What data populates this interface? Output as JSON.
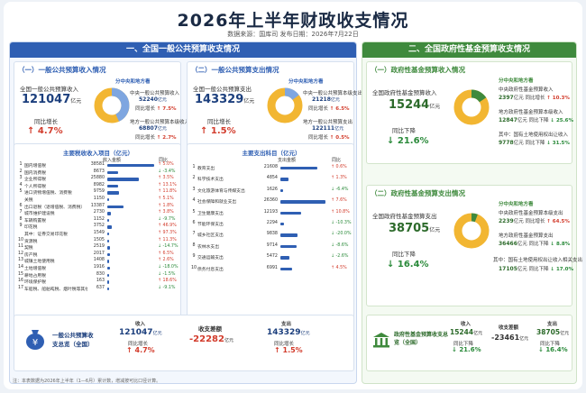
{
  "title": "2026年上半年财政收支情况",
  "source": "数据来源：国库司    发布日期：2026年7月22日",
  "footnote": "注：本表数据为2026年上半年（1—6月）累计数，增减按可比口径计算。",
  "general": {
    "header": "一、全国一般公共预算收支情况",
    "revenue": {
      "subtitle": "（一）一般公共预算收入情况",
      "label": "全国一般公共预算收入",
      "value": "121047",
      "unit": "亿元",
      "growth_label": "同比增长",
      "growth": "4.7%",
      "split_title": "分中央和地方看",
      "central_label": "中央一般公共预算收入",
      "central_value": "52240",
      "central_growth": "7.5%",
      "local_label": "地方一般公共预算本级收入",
      "local_value": "68807",
      "local_growth": "2.7%",
      "unit_small": "亿元",
      "yoy": "同比增长",
      "central_share": 0.432
    },
    "expenditure": {
      "subtitle": "（二）一般公共预算支出情况",
      "label": "全国一般公共预算支出",
      "value": "143329",
      "unit": "亿元",
      "growth_label": "同比增长",
      "growth": "1.5%",
      "split_title": "分中央和地方看",
      "central_label": "中央一般公共预算本级支出",
      "central_value": "21218",
      "central_growth": "6.5%",
      "local_label": "地方一般公共预算支出",
      "local_value": "122111",
      "local_growth": "0.5%",
      "unit_small": "亿元",
      "yoy": "同比增长",
      "central_share": 0.148
    },
    "tax_table": {
      "title": "主要税收收入项目（亿元）",
      "col_value": "收入金额",
      "col_growth": "同比",
      "rows": [
        {
          "n": "1",
          "name": "国内增值税",
          "value": 38581,
          "growth": "5.0%",
          "dir": "up"
        },
        {
          "n": "2",
          "name": "国内消费税",
          "value": 8673,
          "growth": "-3.4%",
          "dir": "down"
        },
        {
          "n": "3",
          "name": "企业所得税",
          "value": 25880,
          "growth": "3.5%",
          "dir": "up"
        },
        {
          "n": "4",
          "name": "个人所得税",
          "value": 8982,
          "growth": "13.1%",
          "dir": "up"
        },
        {
          "n": "5",
          "name": "进口货物增值税、消费税",
          "value": 9759,
          "growth": "11.8%",
          "dir": "up"
        },
        {
          "n": "",
          "name": "关税",
          "value": 1150,
          "growth": "5.1%",
          "dir": "up"
        },
        {
          "n": "6",
          "name": "出口退税（退增值税、消费税）",
          "value": 13387,
          "growth": "1.8%",
          "dir": "up"
        },
        {
          "n": "7",
          "name": "城市维护建设税",
          "value": 2730,
          "growth": "3.8%",
          "dir": "up"
        },
        {
          "n": "8",
          "name": "车辆购置税",
          "value": 1152,
          "growth": "-9.7%",
          "dir": "down"
        },
        {
          "n": "9",
          "name": "印花税",
          "value": 3752,
          "growth": "46.9%",
          "dir": "up"
        },
        {
          "n": "",
          "name": "其中：证券交易印花税",
          "value": 1549,
          "growth": "97.3%",
          "dir": "up"
        },
        {
          "n": "10",
          "name": "资源税",
          "value": 1505,
          "growth": "11.3%",
          "dir": "up"
        },
        {
          "n": "11",
          "name": "契税",
          "value": 2519,
          "growth": "-14.7%",
          "dir": "down"
        },
        {
          "n": "12",
          "name": "房产税",
          "value": 2017,
          "growth": "6.5%",
          "dir": "up"
        },
        {
          "n": "13",
          "name": "城镇土地使用税",
          "value": 1408,
          "growth": "2.6%",
          "dir": "up"
        },
        {
          "n": "14",
          "name": "土地增值税",
          "value": 1916,
          "growth": "-18.0%",
          "dir": "down"
        },
        {
          "n": "15",
          "name": "耕地占用税",
          "value": 830,
          "growth": "-1.5%",
          "dir": "down"
        },
        {
          "n": "16",
          "name": "环境保护税",
          "value": 163,
          "growth": "18.6%",
          "dir": "up"
        },
        {
          "n": "17",
          "name": "车船税、船舶吨税、烟叶税等其他各项税收收入合计",
          "value": 637,
          "growth": "-9.1%",
          "dir": "down"
        }
      ]
    },
    "spend_table": {
      "title": "主要支出科目（亿元）",
      "col_value": "支出金额",
      "col_growth": "同比",
      "rows": [
        {
          "n": "1",
          "name": "教育支出",
          "value": 21608,
          "growth": "0.6%",
          "dir": "up"
        },
        {
          "n": "2",
          "name": "科学技术支出",
          "value": 4854,
          "growth": "1.3%",
          "dir": "up"
        },
        {
          "n": "3",
          "name": "文化旅游体育与传媒支出",
          "value": 1626,
          "growth": "-6.4%",
          "dir": "down"
        },
        {
          "n": "4",
          "name": "社会保障和就业支出",
          "value": 26360,
          "growth": "7.6%",
          "dir": "up"
        },
        {
          "n": "5",
          "name": "卫生健康支出",
          "value": 12193,
          "growth": "10.8%",
          "dir": "up"
        },
        {
          "n": "6",
          "name": "节能环保支出",
          "value": 2294,
          "growth": "-10.3%",
          "dir": "down"
        },
        {
          "n": "7",
          "name": "城乡社区支出",
          "value": 9838,
          "growth": "-20.0%",
          "dir": "down"
        },
        {
          "n": "8",
          "name": "农林水支出",
          "value": 9714,
          "growth": "-8.6%",
          "dir": "down"
        },
        {
          "n": "9",
          "name": "交通运输支出",
          "value": 5472,
          "growth": "-2.6%",
          "dir": "down"
        },
        {
          "n": "10",
          "name": "债务付息支出",
          "value": 6991,
          "growth": "4.5%",
          "dir": "up"
        }
      ]
    },
    "summary": {
      "label": "一般公共预算收支总览（全国）",
      "income_label": "收入",
      "income_value": "121047",
      "income_growth": "4.7%",
      "diff_label": "收支差额",
      "diff_value": "-22282",
      "spend_label": "支出",
      "spend_value": "143329",
      "spend_growth": "1.5%",
      "unit": "亿元",
      "yoy": "同比增长"
    }
  },
  "fund": {
    "header": "二、全国政府性基金预算收支情况",
    "revenue": {
      "subtitle": "（一）政府性基金预算收入情况",
      "label": "全国政府性基金预算收入",
      "value": "15244",
      "unit": "亿元",
      "growth_label": "同比下降",
      "growth": "21.6%",
      "split_title": "分中央和地方看",
      "central_label": "中央政府性基金预算收入",
      "central_value": "2397",
      "central_growth": "10.3%",
      "local_label": "地方政府性基金预算本级收入",
      "local_value": "12847",
      "local_growth": "25.6%",
      "land_label": "其中：国有土地使用权出让收入",
      "land_value": "9778",
      "land_growth": "31.5%",
      "unit_small": "亿元",
      "yoy_up": "同比增长",
      "yoy_down": "同比下降",
      "central_share": 0.157
    },
    "expenditure": {
      "subtitle": "（二）政府性基金预算支出情况",
      "label": "全国政府性基金预算支出",
      "value": "38705",
      "unit": "亿元",
      "growth_label": "同比下降",
      "growth": "16.4%",
      "split_title": "分中央和地方看",
      "central_label": "中央政府性基金预算本级支出",
      "central_value": "2239",
      "central_growth": "64.5%",
      "local_label": "地方政府性基金预算支出",
      "local_value": "36466",
      "local_growth": "8.8%",
      "land_label": "其中：国有土地使用权出让收入相关支出",
      "land_value": "17105",
      "land_growth": "17.0%",
      "unit_small": "亿元",
      "yoy_up": "同比增长",
      "yoy_down": "同比下降",
      "central_share": 0.058
    },
    "summary": {
      "label": "政府性基金预算收支总览（全国）",
      "income_label": "收入",
      "income_value": "15244",
      "income_growth": "21.6%",
      "diff_label": "收支差额",
      "diff_value": "-23461",
      "spend_label": "支出",
      "spend_value": "38705",
      "spend_growth": "16.4%",
      "unit": "亿元",
      "yoy": "同比下降"
    }
  },
  "colors": {
    "blue": "#2f5fb3",
    "light_blue": "#7ea6e0",
    "yellow": "#f2b632",
    "green": "#3f8a3d",
    "red": "#d23b2b"
  }
}
